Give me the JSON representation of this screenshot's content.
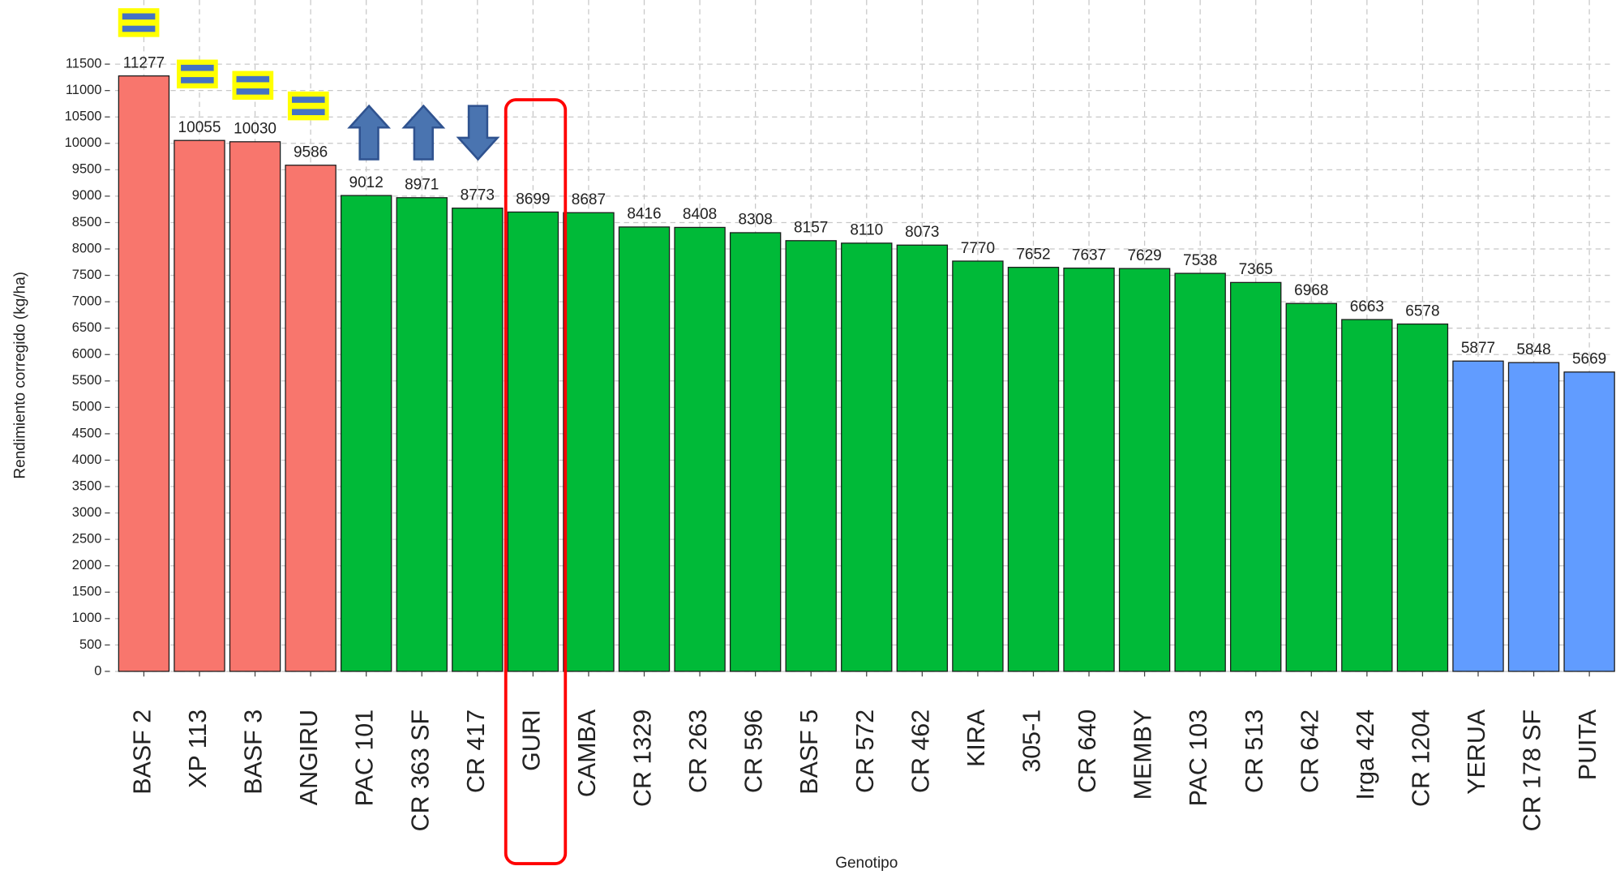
{
  "chart_data": {
    "type": "bar",
    "xlabel": "Genotipo",
    "ylabel": "Rendimiento corregido (kg/ha)",
    "categories": [
      "BASF 2",
      "XP 113",
      "BASF 3",
      "ANGIRU",
      "PAC 101",
      "CR 363 SF",
      "CR 417",
      "GURI",
      "CAMBA",
      "CR 1329",
      "CR 263",
      "CR 596",
      "BASF 5",
      "CR 572",
      "CR 462",
      "KIRA",
      "305-1",
      "CR 640",
      "MEMBY",
      "PAC 103",
      "CR 513",
      "CR 642",
      "Irga 424",
      "CR 1204",
      "YERUA",
      "CR 178 SF",
      "PUITA"
    ],
    "values": [
      11277,
      10055,
      10030,
      9586,
      9012,
      8971,
      8773,
      8699,
      8687,
      8416,
      8408,
      8308,
      8157,
      8110,
      8073,
      7770,
      7652,
      7637,
      7629,
      7538,
      7365,
      6968,
      6663,
      6578,
      5877,
      5848,
      5669
    ],
    "colors": [
      "#F8766D",
      "#F8766D",
      "#F8766D",
      "#F8766D",
      "#00BA38",
      "#00BA38",
      "#00BA38",
      "#00BA38",
      "#00BA38",
      "#00BA38",
      "#00BA38",
      "#00BA38",
      "#00BA38",
      "#00BA38",
      "#00BA38",
      "#00BA38",
      "#00BA38",
      "#00BA38",
      "#00BA38",
      "#00BA38",
      "#00BA38",
      "#00BA38",
      "#00BA38",
      "#00BA38",
      "#619CFF",
      "#619CFF",
      "#619CFF"
    ],
    "ylim": [
      0,
      12000
    ],
    "yticks": [
      0,
      500,
      1000,
      1500,
      2000,
      2500,
      3000,
      3500,
      4000,
      4500,
      5000,
      5500,
      6000,
      6500,
      7000,
      7500,
      8000,
      8500,
      9000,
      9500,
      10000,
      10500,
      11000,
      11500
    ],
    "grid": true
  }
}
